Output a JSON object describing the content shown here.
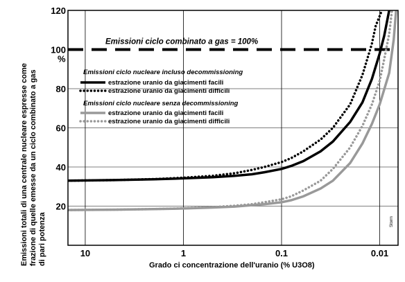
{
  "chart_data": {
    "type": "line",
    "ylabel_lines": [
      "Emissioni totali di una centrale nucleare espresse come",
      "frazione di quelle emesse da un ciclo combinato a gas",
      "di pari potenza"
    ],
    "xlabel": "Grado ci concentrazione dell'uranio  (% U3O8)",
    "x_scale": "log-reversed",
    "xlim": [
      15,
      0.0065
    ],
    "ylim": [
      0,
      120
    ],
    "x_ticks": [
      10,
      1,
      0.1,
      0.01
    ],
    "x_tick_labels": [
      "10",
      "1",
      "0.1",
      "0.01"
    ],
    "y_ticks": [
      20,
      40,
      60,
      80,
      100,
      120
    ],
    "y_tick_labels": [
      "20",
      "40",
      "60",
      "80",
      "100",
      "120"
    ],
    "y_unit_label": "%",
    "grid": true,
    "reference_line": {
      "y": 100,
      "label": "Emissioni ciclo combinato a gas = 100%"
    },
    "legend_groups": [
      {
        "heading": "Emissioni ciclo nucleare incluso decommissioning",
        "entries": [
          "estrazione uranio da giacimenti facili",
          "estrazione uranio da giacimenti difficili"
        ]
      },
      {
        "heading": "Emissioni ciclo nucleare senza decommissioning",
        "entries": [
          "estrazione uranio da giacimenti facili",
          "estrazione uranio da giacimenti difficili"
        ]
      }
    ],
    "legend_placement": "upper-left inside plot",
    "series": [
      {
        "color": "#000000",
        "style": "solid",
        "points": [
          [
            15,
            33
          ],
          [
            5,
            33.3
          ],
          [
            2,
            33.7
          ],
          [
            1,
            34.2
          ],
          [
            0.5,
            34.8
          ],
          [
            0.3,
            35.5
          ],
          [
            0.2,
            36.3
          ],
          [
            0.15,
            37.3
          ],
          [
            0.1,
            39
          ],
          [
            0.08,
            40.5
          ],
          [
            0.06,
            43
          ],
          [
            0.04,
            48
          ],
          [
            0.03,
            53
          ],
          [
            0.02,
            63
          ],
          [
            0.015,
            73
          ],
          [
            0.012,
            85
          ],
          [
            0.01,
            98
          ],
          [
            0.009,
            107
          ],
          [
            0.008,
            120
          ]
        ]
      },
      {
        "color": "#000000",
        "style": "dotted",
        "points": [
          [
            15,
            33
          ],
          [
            5,
            33.3
          ],
          [
            2,
            33.8
          ],
          [
            1,
            34.5
          ],
          [
            0.5,
            35.5
          ],
          [
            0.3,
            36.8
          ],
          [
            0.2,
            38.5
          ],
          [
            0.15,
            40
          ],
          [
            0.1,
            42.5
          ],
          [
            0.08,
            44.5
          ],
          [
            0.06,
            48
          ],
          [
            0.04,
            54
          ],
          [
            0.03,
            60
          ],
          [
            0.02,
            72
          ],
          [
            0.015,
            87
          ],
          [
            0.012,
            103
          ],
          [
            0.011,
            112
          ],
          [
            0.0095,
            120
          ]
        ]
      },
      {
        "color": "#999999",
        "style": "solid",
        "points": [
          [
            15,
            18
          ],
          [
            5,
            18.2
          ],
          [
            2,
            18.5
          ],
          [
            1,
            18.8
          ],
          [
            0.5,
            19.3
          ],
          [
            0.3,
            19.8
          ],
          [
            0.2,
            20.5
          ],
          [
            0.15,
            21
          ],
          [
            0.1,
            22
          ],
          [
            0.08,
            23
          ],
          [
            0.06,
            25
          ],
          [
            0.04,
            29
          ],
          [
            0.03,
            33
          ],
          [
            0.02,
            42
          ],
          [
            0.015,
            52
          ],
          [
            0.012,
            62
          ],
          [
            0.01,
            72
          ],
          [
            0.008,
            88
          ],
          [
            0.0072,
            105
          ],
          [
            0.0068,
            120
          ]
        ]
      },
      {
        "color": "#999999",
        "style": "dotted",
        "points": [
          [
            15,
            18
          ],
          [
            5,
            18.2
          ],
          [
            2,
            18.5
          ],
          [
            1,
            18.9
          ],
          [
            0.5,
            19.5
          ],
          [
            0.3,
            20.2
          ],
          [
            0.2,
            21
          ],
          [
            0.15,
            22
          ],
          [
            0.1,
            23.5
          ],
          [
            0.08,
            25
          ],
          [
            0.06,
            28
          ],
          [
            0.04,
            33
          ],
          [
            0.03,
            39
          ],
          [
            0.02,
            50
          ],
          [
            0.015,
            61
          ],
          [
            0.012,
            72
          ],
          [
            0.01,
            84
          ],
          [
            0.009,
            95
          ],
          [
            0.008,
            108
          ],
          [
            0.0075,
            120
          ]
        ]
      }
    ],
    "signature": "Storm"
  }
}
